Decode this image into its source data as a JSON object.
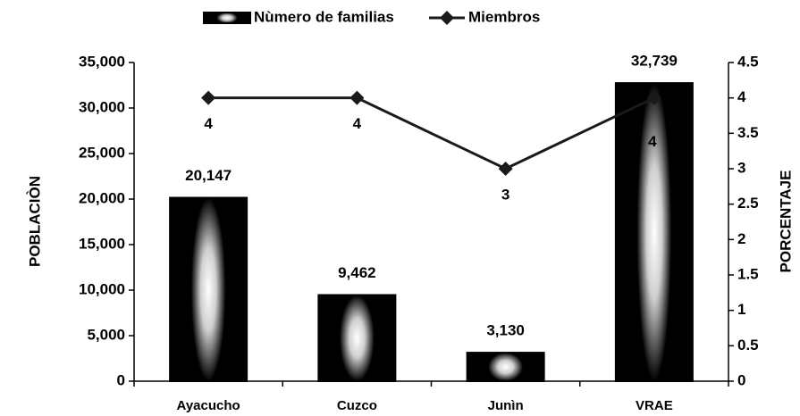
{
  "chart_data": {
    "type": "bar",
    "categories": [
      "Ayacucho",
      "Cuzco",
      "Junìn",
      "VRAE"
    ],
    "series": [
      {
        "name": "Nùmero de familias",
        "color": "#000000",
        "values": [
          20147,
          9462,
          3130,
          32739
        ],
        "value_labels": [
          "20,147",
          "9,462",
          "3,130",
          "32,739"
        ]
      },
      {
        "name": "Miembros",
        "color": "#1a1a1a",
        "values": [
          4,
          4,
          3,
          4
        ],
        "axis": "y2"
      }
    ],
    "ylabel": "POBLACIÒN",
    "y2label": "PORCENTAJE",
    "ylim": [
      0,
      35000
    ],
    "yticks": [
      {
        "value": 0,
        "label": "0"
      },
      {
        "value": 5000,
        "label": "5,000"
      },
      {
        "value": 10000,
        "label": "10,000"
      },
      {
        "value": 15000,
        "label": "15,000"
      },
      {
        "value": 20000,
        "label": "20,000"
      },
      {
        "value": 25000,
        "label": "25,000"
      },
      {
        "value": 30000,
        "label": "30,000"
      },
      {
        "value": 35000,
        "label": "35,000"
      }
    ],
    "y2lim": [
      0,
      4.5
    ],
    "y2ticks": [
      0,
      0.5,
      1,
      1.5,
      2,
      2.5,
      3,
      3.5,
      4,
      4.5
    ],
    "legend": "top",
    "grid": false
  }
}
